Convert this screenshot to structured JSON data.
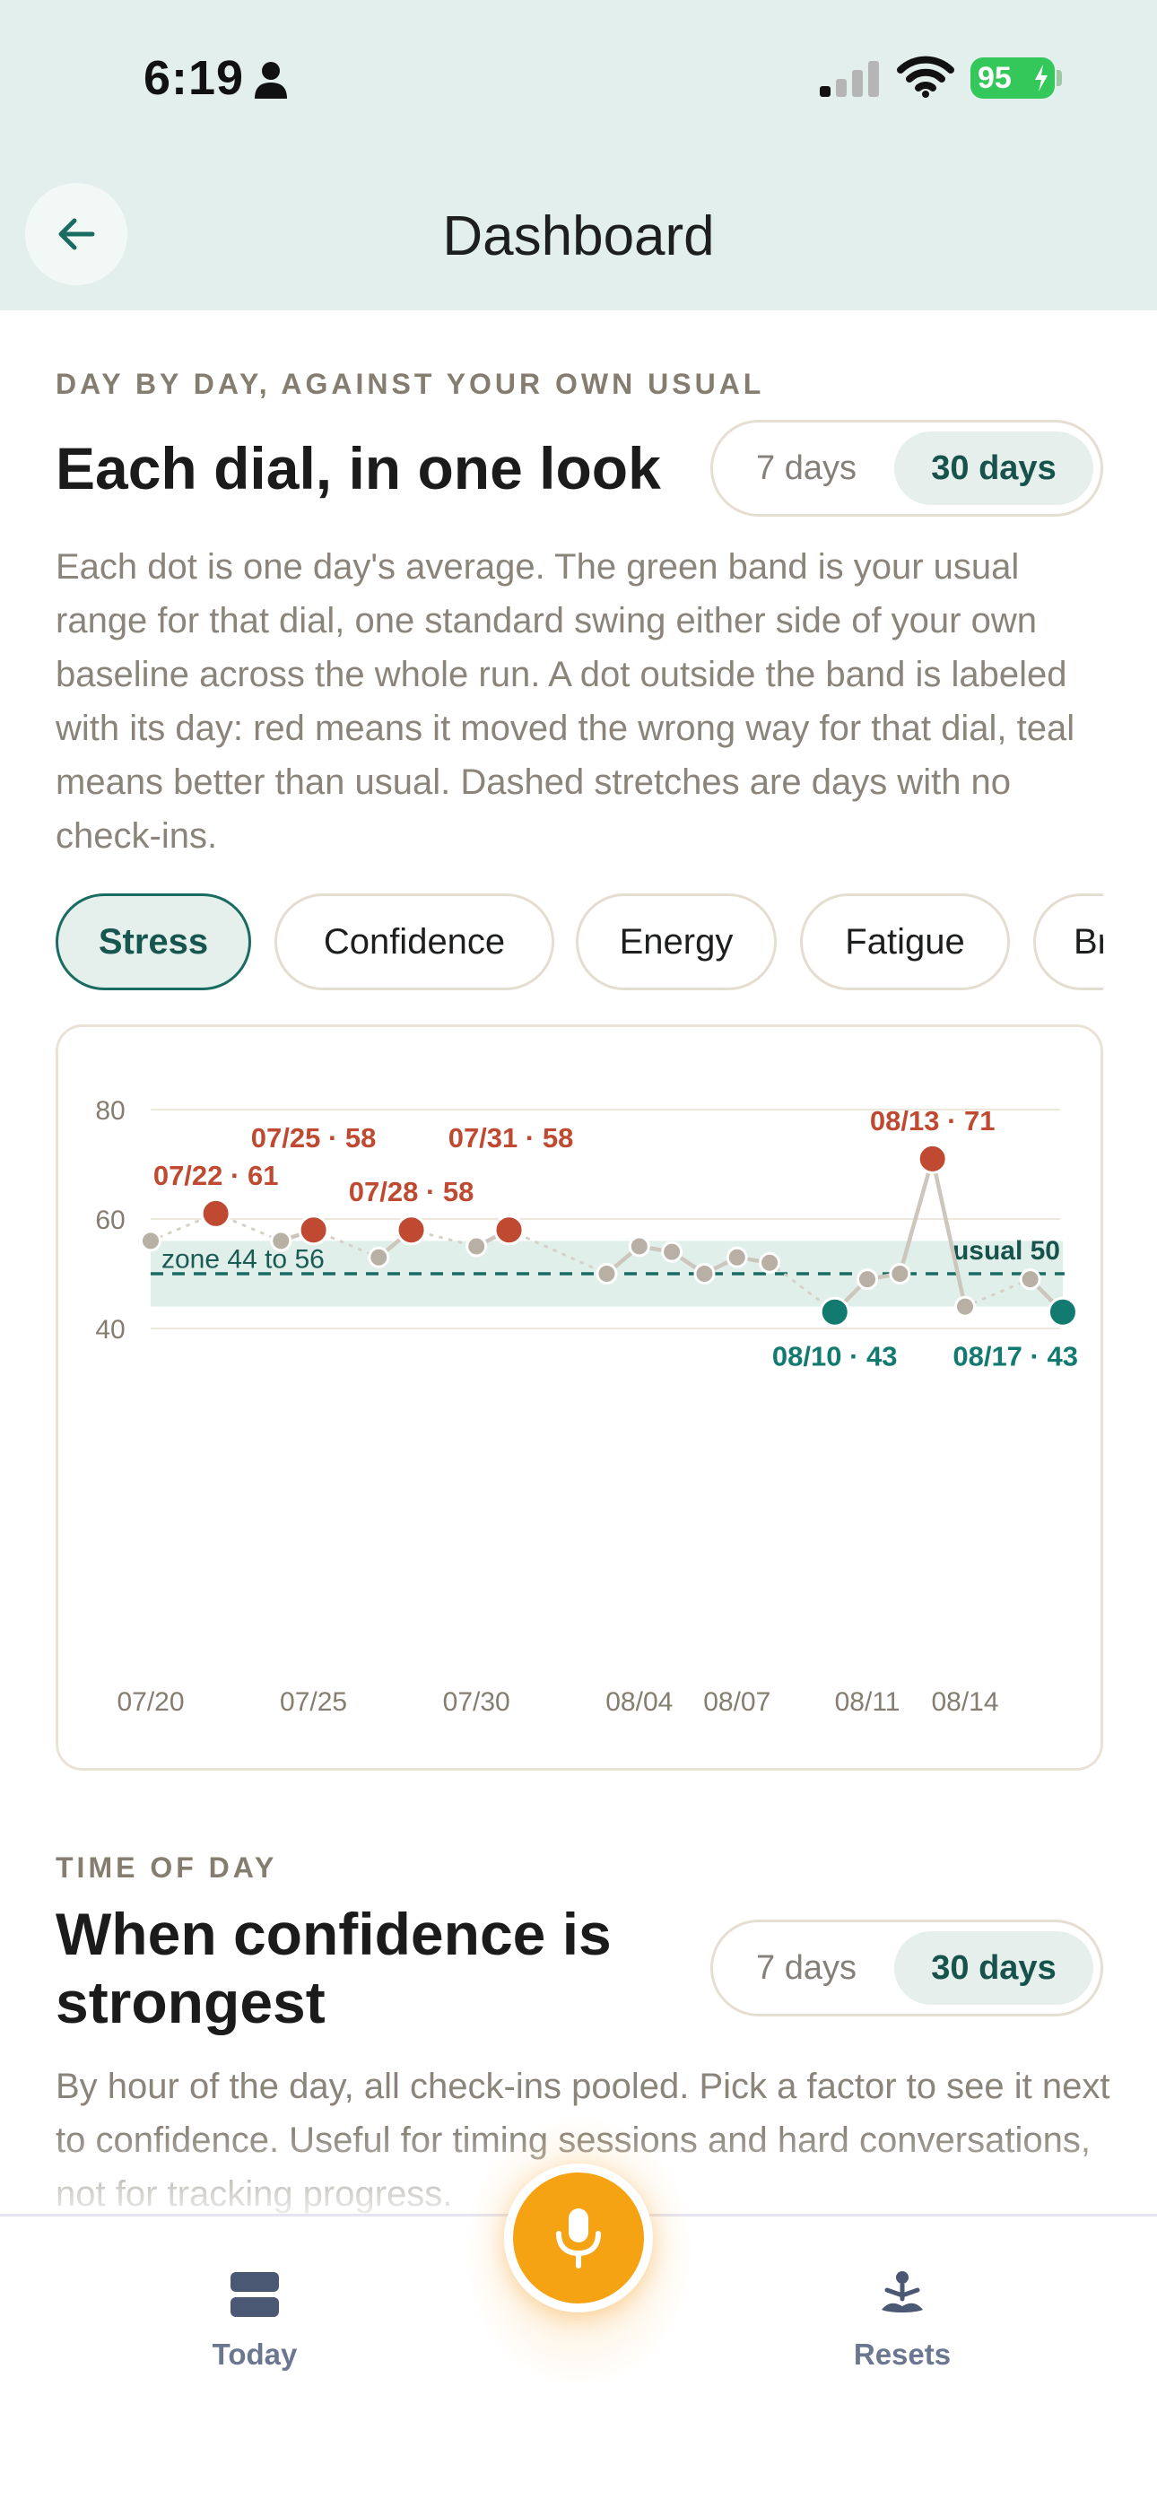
{
  "status_bar": {
    "time": "6:19",
    "battery": "95"
  },
  "header": {
    "title": "Dashboard"
  },
  "section_dials": {
    "eyebrow": "DAY BY DAY, AGAINST YOUR OWN USUAL",
    "title": "Each dial, in one look",
    "range_options": [
      "7 days",
      "30 days"
    ],
    "range_selected": "30 days",
    "description": "Each dot is one day's average. The green band is your usual range for that dial, one standard swing either side of your own baseline across the whole run. A dot outside the band is labeled with its day: red means it moved the wrong way for that dial, teal means better than usual. Dashed stretches are days with no check-ins.",
    "filters": [
      "Stress",
      "Confidence",
      "Energy",
      "Fatigue",
      "Br"
    ],
    "filter_selected": "Stress"
  },
  "chart_data": {
    "type": "line",
    "ylim": [
      40,
      80
    ],
    "yticks": [
      40,
      60,
      80
    ],
    "xticks": [
      "07/20",
      "07/25",
      "07/30",
      "08/04",
      "08/07",
      "08/11",
      "08/14"
    ],
    "usual": 50,
    "band": [
      44,
      56
    ],
    "band_label": "zone 44 to 56",
    "usual_label": "usual 50",
    "points": [
      {
        "day": 0,
        "value": 56,
        "state": "normal"
      },
      {
        "day": 2,
        "value": 61,
        "state": "worse",
        "label": "07/22 · 61"
      },
      {
        "day": 4,
        "value": 56,
        "state": "normal"
      },
      {
        "day": 5,
        "value": 58,
        "state": "worse",
        "label": "07/25 · 58"
      },
      {
        "day": 7,
        "value": 53,
        "state": "normal"
      },
      {
        "day": 8,
        "value": 58,
        "state": "worse",
        "label": "07/28 · 58"
      },
      {
        "day": 10,
        "value": 55,
        "state": "normal"
      },
      {
        "day": 11,
        "value": 58,
        "state": "worse",
        "label": "07/31 · 58"
      },
      {
        "day": 14,
        "value": 50,
        "state": "normal"
      },
      {
        "day": 15,
        "value": 55,
        "state": "normal"
      },
      {
        "day": 16,
        "value": 54,
        "state": "normal"
      },
      {
        "day": 17,
        "value": 50,
        "state": "normal"
      },
      {
        "day": 18,
        "value": 53,
        "state": "normal"
      },
      {
        "day": 19,
        "value": 52,
        "state": "normal"
      },
      {
        "day": 21,
        "value": 43,
        "state": "better",
        "label": "08/10 · 43"
      },
      {
        "day": 22,
        "value": 49,
        "state": "normal"
      },
      {
        "day": 23,
        "value": 50,
        "state": "normal"
      },
      {
        "day": 24,
        "value": 71,
        "state": "worse",
        "label": "08/13 · 71"
      },
      {
        "day": 25,
        "value": 44,
        "state": "normal"
      },
      {
        "day": 27,
        "value": 49,
        "state": "normal"
      },
      {
        "day": 28,
        "value": 43,
        "state": "better",
        "label": "08/17 · 43"
      }
    ],
    "gaps_after_days": [
      0,
      2,
      5,
      8,
      11,
      19,
      25
    ],
    "colors": {
      "worse": "#bf4a31",
      "better": "#127a6f",
      "normal": "#b8b0a4",
      "line": "#ccc6bc",
      "band": "#e1efeb"
    }
  },
  "section_time": {
    "eyebrow": "TIME OF DAY",
    "title_line1": "When confidence is",
    "title_line2": "strongest",
    "range_options": [
      "7 days",
      "30 days"
    ],
    "range_selected": "30 days",
    "description": "By hour of the day, all check-ins pooled. Pick a factor to see it next to confidence. Useful for timing sessions and hard conversations, not for tracking progress."
  },
  "tabbar": {
    "left": {
      "label": "Today",
      "icon": "today-icon"
    },
    "center": {
      "icon": "microphone-icon"
    },
    "right": {
      "label": "Resets",
      "icon": "meditation-icon"
    }
  }
}
